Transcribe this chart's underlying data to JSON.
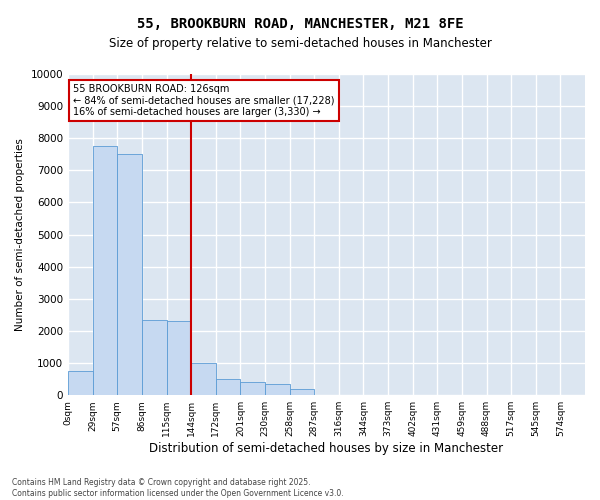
{
  "title1": "55, BROOKBURN ROAD, MANCHESTER, M21 8FE",
  "title2": "Size of property relative to semi-detached houses in Manchester",
  "xlabel": "Distribution of semi-detached houses by size in Manchester",
  "ylabel": "Number of semi-detached properties",
  "bar_color": "#c6d9f1",
  "bar_edge_color": "#5b9bd5",
  "bg_color": "#dce6f1",
  "grid_color": "#ffffff",
  "vline_color": "#cc0000",
  "annotation_box_color": "#cc0000",
  "annotation_text": "55 BROOKBURN ROAD: 126sqm\n← 84% of semi-detached houses are smaller (17,228)\n16% of semi-detached houses are larger (3,330) →",
  "footnote": "Contains HM Land Registry data © Crown copyright and database right 2025.\nContains public sector information licensed under the Open Government Licence v3.0.",
  "bin_labels": [
    "0sqm",
    "29sqm",
    "57sqm",
    "86sqm",
    "115sqm",
    "144sqm",
    "172sqm",
    "201sqm",
    "230sqm",
    "258sqm",
    "287sqm",
    "316sqm",
    "344sqm",
    "373sqm",
    "402sqm",
    "431sqm",
    "459sqm",
    "488sqm",
    "517sqm",
    "545sqm",
    "574sqm"
  ],
  "bar_heights": [
    750,
    7750,
    7500,
    2350,
    2300,
    1000,
    500,
    400,
    350,
    200,
    0,
    0,
    0,
    0,
    0,
    0,
    0,
    0,
    0,
    0,
    0
  ],
  "vline_x": 4.5,
  "ylim": [
    0,
    10000
  ],
  "yticks": [
    0,
    1000,
    2000,
    3000,
    4000,
    5000,
    6000,
    7000,
    8000,
    9000,
    10000
  ],
  "title1_fontsize": 10,
  "title2_fontsize": 8.5,
  "ylabel_fontsize": 7.5,
  "xlabel_fontsize": 8.5,
  "ytick_fontsize": 7.5,
  "xtick_fontsize": 6.5,
  "annot_fontsize": 7,
  "footnote_fontsize": 5.5
}
